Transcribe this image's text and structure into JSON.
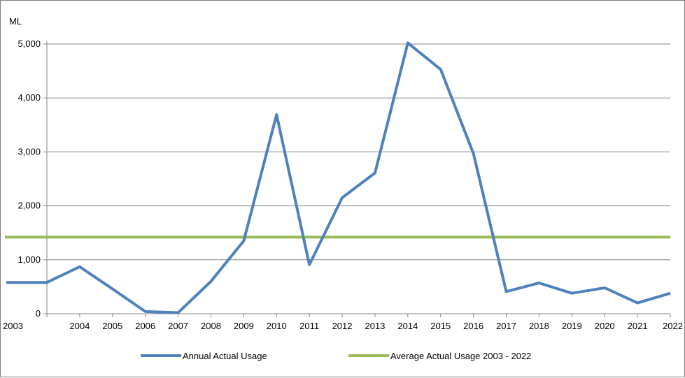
{
  "chart_data": {
    "type": "line",
    "ylabel": "ML",
    "x": [
      "2003",
      "2004",
      "2005",
      "2006",
      "2007",
      "2008",
      "2009",
      "2010",
      "2011",
      "2012",
      "2013",
      "2014",
      "2015",
      "2016",
      "2017",
      "2018",
      "2019",
      "2020",
      "2021",
      "2022"
    ],
    "ylim": [
      0,
      5000
    ],
    "yticks": [
      0,
      1000,
      2000,
      3000,
      4000,
      5000
    ],
    "ytick_labels": [
      "0",
      "1,000",
      "2,000",
      "3,000",
      "4,000",
      "5,000"
    ],
    "grid": true,
    "legend_position": "bottom",
    "series": [
      {
        "name": "Annual Actual Usage",
        "color": "#4f81bd",
        "values": [
          580,
          870,
          460,
          40,
          20,
          600,
          1350,
          3690,
          910,
          2150,
          2610,
          5020,
          4530,
          2970,
          410,
          570,
          380,
          480,
          200,
          380
        ]
      },
      {
        "name": "Average Actual Usage 2003 - 2022",
        "color": "#9bbb59",
        "values": [
          1420,
          1420,
          1420,
          1420,
          1420,
          1420,
          1420,
          1420,
          1420,
          1420,
          1420,
          1420,
          1420,
          1420,
          1420,
          1420,
          1420,
          1420,
          1420,
          1420
        ]
      }
    ]
  }
}
